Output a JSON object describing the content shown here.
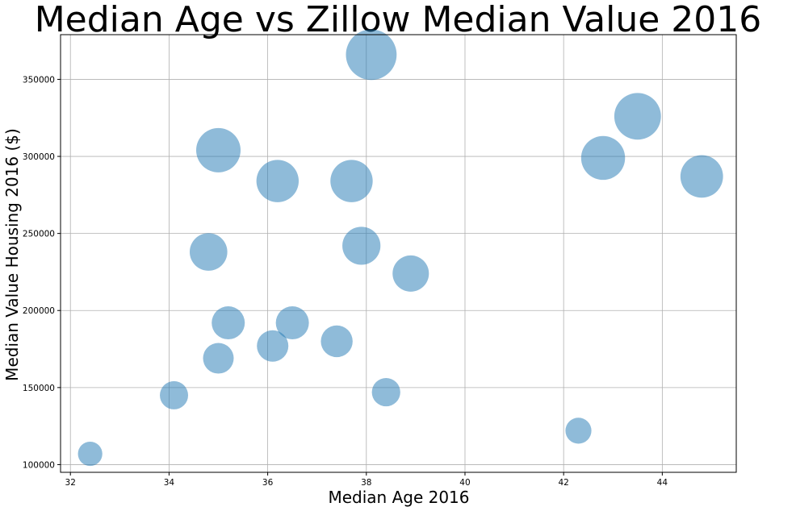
{
  "chart_data": {
    "type": "scatter",
    "title": "Median Age vs Zillow Median Value 2016",
    "xlabel": "Median Age 2016",
    "ylabel": "Median Value Housing 2016 ($)",
    "xlim": [
      31.8,
      45.5
    ],
    "ylim": [
      95000,
      379000
    ],
    "xticks": [
      32,
      34,
      36,
      38,
      40,
      42,
      44
    ],
    "yticks": [
      100000,
      150000,
      200000,
      250000,
      300000,
      350000
    ],
    "xtick_labels": [
      "32",
      "34",
      "36",
      "38",
      "40",
      "42",
      "44"
    ],
    "ytick_labels": [
      "100000",
      "150000",
      "200000",
      "250000",
      "300000",
      "350000"
    ],
    "grid": true,
    "marker_color": "#1f77b4",
    "marker_alpha": 0.5,
    "marker_size_encodes": "y value",
    "points": [
      {
        "x": 32.4,
        "y": 107000
      },
      {
        "x": 34.1,
        "y": 145000
      },
      {
        "x": 34.8,
        "y": 238000
      },
      {
        "x": 35.0,
        "y": 169000
      },
      {
        "x": 35.0,
        "y": 304000
      },
      {
        "x": 35.2,
        "y": 192000
      },
      {
        "x": 36.1,
        "y": 177000
      },
      {
        "x": 36.2,
        "y": 284000
      },
      {
        "x": 36.5,
        "y": 192000
      },
      {
        "x": 37.4,
        "y": 180000
      },
      {
        "x": 37.7,
        "y": 284000
      },
      {
        "x": 37.9,
        "y": 242000
      },
      {
        "x": 38.1,
        "y": 366000
      },
      {
        "x": 38.4,
        "y": 147000
      },
      {
        "x": 38.9,
        "y": 224000
      },
      {
        "x": 42.3,
        "y": 122000
      },
      {
        "x": 42.8,
        "y": 299000
      },
      {
        "x": 43.5,
        "y": 326000
      },
      {
        "x": 44.8,
        "y": 287000
      }
    ]
  }
}
